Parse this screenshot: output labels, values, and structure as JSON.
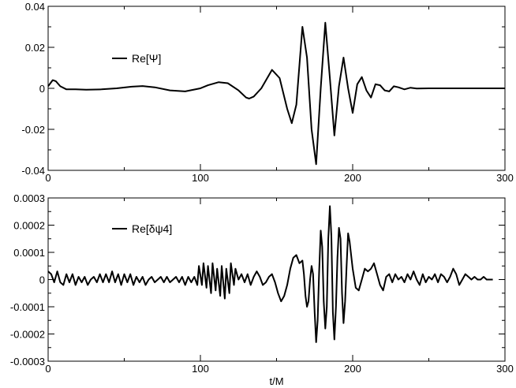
{
  "chart_data": [
    {
      "type": "line",
      "title": "",
      "xlabel": "",
      "ylabel": "",
      "xlim": [
        0,
        300
      ],
      "ylim": [
        -0.04,
        0.04
      ],
      "grid": false,
      "legend_position": "top-left",
      "x_ticks": [
        "0",
        "100",
        "200",
        "300"
      ],
      "y_ticks": [
        "-0.04",
        "-0.02",
        "0",
        "0.02",
        "0.04"
      ],
      "series": [
        {
          "name": "Re[Ψ]",
          "color": "#000000",
          "x": [
            0,
            3,
            5,
            8,
            12,
            18,
            25,
            35,
            45,
            55,
            62,
            70,
            80,
            90,
            100,
            105,
            112,
            118,
            125,
            130,
            132,
            135,
            140,
            147,
            152,
            157,
            160,
            163,
            167,
            170,
            173,
            176,
            179,
            182,
            185,
            188,
            191,
            194,
            197,
            200,
            203,
            206,
            209,
            212,
            215,
            218,
            221,
            224,
            227,
            230,
            234,
            238,
            242,
            250,
            260,
            275,
            290,
            300
          ],
          "y": [
            0.001,
            0.004,
            0.0035,
            0.001,
            -0.0005,
            -0.0005,
            -0.0007,
            -0.0005,
            0.0,
            0.0008,
            0.0011,
            0.0005,
            -0.001,
            -0.0015,
            0.0,
            0.0015,
            0.003,
            0.0025,
            -0.001,
            -0.0045,
            -0.005,
            -0.004,
            0.0,
            0.009,
            0.005,
            -0.01,
            -0.017,
            -0.008,
            0.03,
            0.015,
            -0.02,
            -0.037,
            0.0,
            0.032,
            0.005,
            -0.023,
            0.001,
            0.015,
            0.0,
            -0.012,
            0.002,
            0.0055,
            -0.001,
            -0.0045,
            0.002,
            0.0015,
            -0.001,
            -0.0015,
            0.001,
            0.0005,
            -0.0005,
            0.0003,
            -0.0001,
            0.0,
            0.0,
            0.0,
            0.0,
            0.0
          ]
        }
      ]
    },
    {
      "type": "line",
      "title": "",
      "xlabel": "t/M",
      "ylabel": "",
      "xlim": [
        0,
        300
      ],
      "ylim": [
        -0.0003,
        0.0003
      ],
      "grid": false,
      "legend_position": "top-left",
      "x_ticks": [
        "0",
        "100",
        "200",
        "300"
      ],
      "y_ticks": [
        "-0.0003",
        "-0.0002",
        "-0.0001",
        "0",
        "0.0001",
        "0.0002",
        "0.0003"
      ],
      "series": [
        {
          "name": "Re[δψ4]",
          "color": "#000000",
          "x": [
            0,
            2,
            4,
            6,
            8,
            10,
            12,
            14,
            16,
            18,
            20,
            22,
            24,
            26,
            28,
            30,
            32,
            34,
            36,
            38,
            40,
            42,
            44,
            46,
            48,
            50,
            52,
            54,
            56,
            58,
            60,
            62,
            64,
            66,
            68,
            70,
            72,
            74,
            76,
            78,
            80,
            82,
            84,
            86,
            88,
            90,
            92,
            94,
            96,
            98,
            99,
            101,
            102,
            104,
            105,
            107,
            108,
            110,
            111,
            113,
            114,
            116,
            117,
            119,
            120,
            122,
            123,
            125,
            127,
            129,
            131,
            133,
            135,
            137,
            139,
            141,
            143,
            145,
            147,
            149,
            151,
            153,
            155,
            157,
            159,
            161,
            163,
            165,
            167,
            168,
            169,
            170,
            171,
            172,
            173,
            174,
            175,
            176,
            177,
            178,
            179,
            180,
            181,
            182,
            183,
            184,
            185,
            186,
            187,
            188,
            189,
            190,
            191,
            192,
            193,
            194,
            195,
            196,
            197,
            198,
            200,
            202,
            204,
            206,
            208,
            210,
            212,
            214,
            216,
            218,
            220,
            222,
            224,
            226,
            228,
            230,
            232,
            234,
            236,
            238,
            240,
            242,
            244,
            246,
            248,
            250,
            252,
            254,
            256,
            258,
            260,
            262,
            264,
            266,
            268,
            270,
            272,
            274,
            276,
            278,
            280,
            282,
            284,
            286,
            288,
            290,
            292
          ],
          "y": [
            3e-05,
            2e-05,
            -1e-05,
            3e-05,
            -1e-05,
            -2e-05,
            2e-05,
            -1e-05,
            2e-05,
            -2e-05,
            1e-05,
            -1e-05,
            1e-05,
            -2e-05,
            0.0,
            1e-05,
            -1e-05,
            2e-05,
            -1e-05,
            2e-05,
            -1e-05,
            3e-05,
            -1e-05,
            2e-05,
            -2e-05,
            2e-05,
            -1e-05,
            2e-05,
            -2e-05,
            1e-05,
            -1e-05,
            1e-05,
            -2e-05,
            0.0,
            1e-05,
            -1e-05,
            0.0,
            1e-05,
            -1e-05,
            1e-05,
            -1e-05,
            0.0,
            1e-05,
            -1e-05,
            1e-05,
            -2e-05,
            1e-05,
            -1e-05,
            1e-05,
            -2e-05,
            5e-05,
            -2e-05,
            6e-05,
            -3e-05,
            5e-05,
            -5e-05,
            6e-05,
            -4e-05,
            4e-05,
            -6e-05,
            5e-05,
            -7e-05,
            4e-05,
            -5e-05,
            6e-05,
            -2e-05,
            4e-05,
            0.0,
            2e-05,
            -1e-05,
            2e-05,
            -2e-05,
            1e-05,
            3e-05,
            1e-05,
            -2e-05,
            -1e-05,
            1e-05,
            2e-05,
            -1e-05,
            -5e-05,
            -8e-05,
            -6e-05,
            -2e-05,
            4e-05,
            8e-05,
            9e-05,
            6e-05,
            7e-05,
            2e-05,
            -6e-05,
            -0.0001,
            -8e-05,
            0.0,
            5e-05,
            2e-05,
            -0.00012,
            -0.00023,
            -0.00015,
            3e-05,
            0.00018,
            0.00012,
            -8e-05,
            -0.00018,
            -0.0001,
            0.00015,
            0.00027,
            0.00016,
            -0.00012,
            -0.00022,
            -0.0001,
            8e-05,
            0.00019,
            0.00015,
            -5e-05,
            -0.00016,
            -8e-05,
            5e-05,
            0.00017,
            0.00014,
            4e-05,
            -3e-05,
            -4e-05,
            0.0,
            4e-05,
            3e-05,
            4e-05,
            6e-05,
            2e-05,
            -2e-05,
            -4e-05,
            1e-05,
            2e-05,
            -1e-05,
            2e-05,
            0.0,
            1e-05,
            -1e-05,
            2e-05,
            0.0,
            3e-05,
            0.0,
            -2e-05,
            2e-05,
            -1e-05,
            1e-05,
            0.0,
            2e-05,
            -1e-05,
            2e-05,
            1e-05,
            -1e-05,
            1e-05,
            4e-05,
            2e-05,
            -2e-05,
            0.0,
            2e-05,
            1e-05,
            0.0,
            1e-05,
            0.0,
            0.0,
            1e-05,
            0.0,
            0.0,
            0.0
          ]
        }
      ]
    }
  ]
}
